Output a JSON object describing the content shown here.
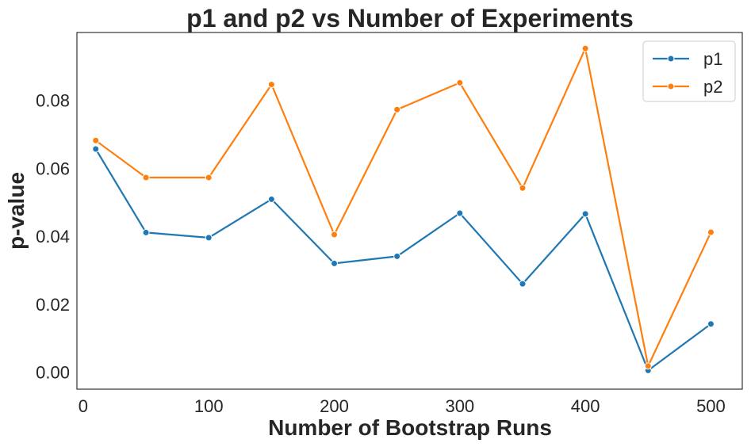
{
  "chart_data": {
    "type": "line",
    "title": "p1 and p2 vs Number of Experiments",
    "xlabel": "Number of Bootstrap Runs",
    "ylabel": "p-value",
    "x": [
      10,
      50,
      100,
      150,
      200,
      250,
      300,
      350,
      400,
      450,
      500
    ],
    "xlim": [
      -5,
      525
    ],
    "ylim": [
      -0.005,
      0.1
    ],
    "xticks": [
      0,
      100,
      200,
      300,
      400,
      500
    ],
    "xtick_labels": [
      "0",
      "100",
      "200",
      "300",
      "400",
      "500"
    ],
    "yticks": [
      0,
      0.02,
      0.04,
      0.06,
      0.08
    ],
    "ytick_labels": [
      "0.00",
      "0.02",
      "0.04",
      "0.06",
      "0.08"
    ],
    "grid": false,
    "legend_position": "top-right",
    "series": [
      {
        "name": "p1",
        "color": "#1f77b4",
        "marker": "circle",
        "values": [
          0.0657,
          0.0411,
          0.0396,
          0.0509,
          0.032,
          0.0341,
          0.0468,
          0.026,
          0.0466,
          0.0005,
          0.0142
        ]
      },
      {
        "name": "p2",
        "color": "#ff7f0e",
        "marker": "circle",
        "values": [
          0.0682,
          0.0573,
          0.0573,
          0.0847,
          0.0405,
          0.0773,
          0.0852,
          0.0542,
          0.0953,
          0.0018,
          0.0412
        ]
      }
    ]
  }
}
